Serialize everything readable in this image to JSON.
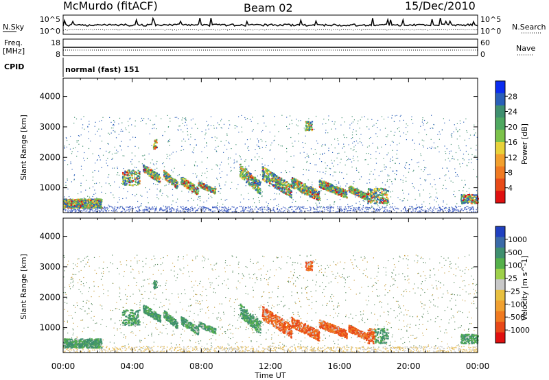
{
  "header": {
    "title": "McMurdo (fitACF)",
    "beam": "Beam 02",
    "date": "15/Dec/2010"
  },
  "housekeeping": {
    "nsky_label": "N.Sky",
    "nsearch_label": "N.Search",
    "nsky_ticks": [
      "10^5",
      "10^0"
    ],
    "freq_label": "Freq.",
    "freq_unit": "[MHz]",
    "freq_ticks": [
      "18",
      "8"
    ],
    "nave_label": "Nave",
    "nave_ticks": [
      "60",
      "0"
    ],
    "cpid_label": "CPID",
    "cpid_value": "normal (fast) 151"
  },
  "chart_data": [
    {
      "type": "heatmap",
      "name": "power-rti",
      "xlabel": "Time UT",
      "ylabel": "Slant Range [km]",
      "x_ticks": [
        "00:00",
        "04:00",
        "08:00",
        "12:00",
        "16:00",
        "20:00",
        "00:00"
      ],
      "xlim_hours": [
        0,
        24
      ],
      "y_ticks": [
        1000,
        2000,
        3000,
        4000
      ],
      "ylim": [
        180,
        4600
      ],
      "colorbar": {
        "label": "Power [dB]",
        "ticks": [
          "4",
          "8",
          "12",
          "16",
          "20",
          "24",
          "28"
        ],
        "colors": [
          "#0a2cf0",
          "#2a5fb8",
          "#3f8f6f",
          "#4fa860",
          "#7cc24a",
          "#e8d23a",
          "#f2a02e",
          "#f07a22",
          "#e84a18",
          "#e01010"
        ]
      }
    },
    {
      "type": "heatmap",
      "name": "velocity-rti",
      "xlabel": "Time UT",
      "ylabel": "Slant Range [km]",
      "x_ticks": [
        "00:00",
        "04:00",
        "08:00",
        "12:00",
        "16:00",
        "20:00",
        "00:00"
      ],
      "xlim_hours": [
        0,
        24
      ],
      "y_ticks": [
        1000,
        2000,
        3000,
        4000
      ],
      "ylim": [
        180,
        4600
      ],
      "colorbar": {
        "label": "Velocity [m s^-1]",
        "ticks": [
          "1000",
          "500",
          "100",
          "25",
          "-25",
          "-100",
          "-500",
          "-1000"
        ],
        "colors": [
          "#2040c0",
          "#3a6aa8",
          "#3f8f6f",
          "#55b04a",
          "#9ed04a",
          "#c8c8c8",
          "#e8c040",
          "#f0a030",
          "#f07a20",
          "#e84818",
          "#e01010"
        ]
      }
    }
  ]
}
